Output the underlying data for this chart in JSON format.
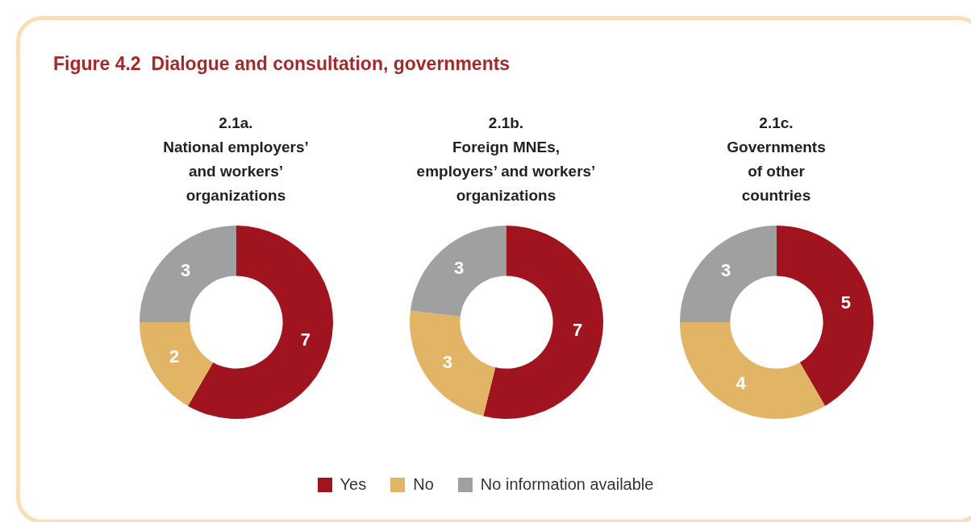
{
  "chart_data": [
    {
      "type": "donut",
      "title": "Figure 4.2  Dialogue and consultation, governments",
      "subtitle": "2.1a.\nNational employers’\nand workers’\norganizations",
      "categories": [
        "Yes",
        "No",
        "No information available"
      ],
      "values": [
        7,
        2,
        3
      ],
      "colors": [
        "#a0141f",
        "#e2b566",
        "#a0a0a0"
      ],
      "data_labels": true,
      "legend": "bottom"
    },
    {
      "type": "donut",
      "subtitle": "2.1b.\nForeign MNEs,\nemployers’ and workers’\norganizations",
      "categories": [
        null,
        null,
        null
      ],
      "values": [
        7,
        3,
        3
      ],
      "colors": [
        "#a0141f",
        "#e2b566",
        "#a0a0a0"
      ],
      "data_labels": true
    },
    {
      "type": "donut",
      "subtitle": "2.1c.\nGovernments\nof other\ncountries",
      "categories": [
        null,
        null,
        null
      ],
      "values": [
        5,
        4,
        3
      ],
      "colors": [
        "#a0141f",
        "#e2b566",
        "#a0a0a0"
      ],
      "data_labels": true
    }
  ]
}
